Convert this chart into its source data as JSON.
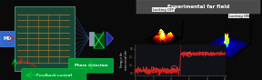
{
  "fig_bg": "#0a0a0a",
  "left_bg": "#1c3d2e",
  "right_bg": "#0d0d10",
  "chip_bg": "#1a4535",
  "chip_edge": "#5a9a7a",
  "trace_colors": [
    "#c87830",
    "#d08838",
    "#c87830",
    "#d08838",
    "#c87830",
    "#d08838",
    "#c87830",
    "#c87830",
    "#d08838"
  ],
  "fiber_color": "#3366aa",
  "beam_color": "#44ff44",
  "mo_bg": "#3366cc",
  "mo_edge": "#4488ee",
  "phase_bg": "#009933",
  "phase_edge": "#00cc44",
  "feedback_bg": "#009933",
  "feedback_edge": "#00cc44",
  "arrow_green": "#00dd44",
  "arrow_red": "#cc2200",
  "header_bg": "#4a4a4a",
  "header_text": "Experimental far field",
  "label_off": "Locking OFF",
  "label_on": "Locking ON",
  "mo_label": "MO",
  "phase_label": "Phase detection",
  "fb_label": "Feedback control",
  "ts_line_color": "#cc2222",
  "ts_bg": "#111118",
  "spine_color": "#555555",
  "tick_color": "#888888"
}
